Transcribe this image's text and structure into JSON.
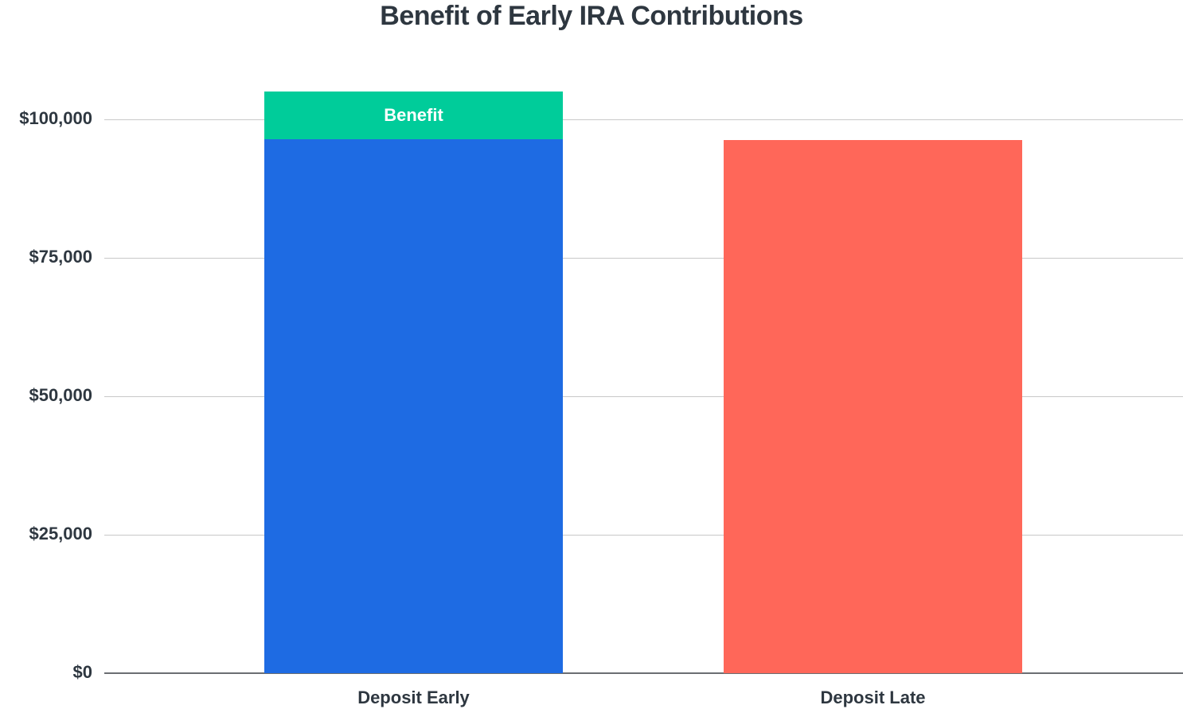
{
  "chart_data": {
    "type": "bar",
    "stacked": true,
    "title": "Benefit of Early IRA Contributions",
    "xlabel": "",
    "ylabel": "",
    "categories": [
      "Deposit Early",
      "Deposit Late"
    ],
    "series": [
      {
        "name": "Base",
        "values": [
          96400,
          96300
        ],
        "colors": [
          "#1e6be3",
          "#ff6759"
        ]
      },
      {
        "name": "Benefit",
        "values": [
          8600,
          0
        ],
        "color": "#00cc9a",
        "label": "Benefit"
      }
    ],
    "totals": [
      105000,
      96300
    ],
    "ylim": [
      0,
      105000
    ],
    "yticks": [
      0,
      25000,
      50000,
      75000,
      100000
    ],
    "ytick_labels": [
      "$0",
      "$25,000",
      "$50,000",
      "$75,000",
      "$100,000"
    ],
    "grid": true,
    "legend": "none"
  },
  "colors": {
    "early": "#1e6be3",
    "late": "#ff6759",
    "benefit": "#00cc9a",
    "text": "#2e3740",
    "grid": "#c8c8c8"
  }
}
